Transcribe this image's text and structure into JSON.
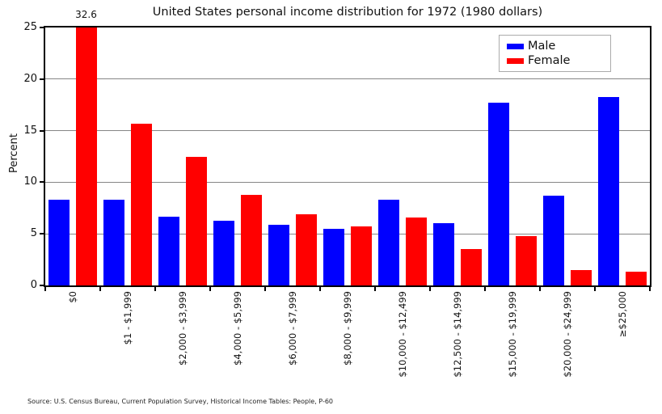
{
  "chart_data": {
    "type": "bar",
    "title": "United States personal income distribution for 1972 (1980 dollars)",
    "xlabel": "",
    "ylabel": "Percent",
    "categories": [
      "$0",
      "$1 - $1,999",
      "$2,000 - $3,999",
      "$4,000 - $5,999",
      "$6,000 - $7,999",
      "$8,000 - $9,999",
      "$10,000 - $12,499",
      "$12,500 - $14,999",
      "$15,000 - $19,999",
      "$20,000 - $24,999",
      "≥$25,000"
    ],
    "series": [
      {
        "name": "Male",
        "color": "#0000ff",
        "values": [
          8.3,
          8.3,
          6.7,
          6.3,
          5.9,
          5.5,
          8.3,
          6.0,
          17.7,
          8.7,
          18.3
        ]
      },
      {
        "name": "Female",
        "color": "#ff0000",
        "values": [
          32.6,
          15.7,
          12.5,
          8.8,
          6.9,
          5.7,
          6.6,
          3.5,
          4.8,
          1.5,
          1.3
        ]
      }
    ],
    "ylim": [
      0,
      25
    ],
    "yticks": [
      0,
      5,
      10,
      15,
      20,
      25
    ],
    "grid": true,
    "legend_position": "upper right",
    "clip_annotation": {
      "text": "32.6",
      "category_index": 0,
      "series": "Female"
    },
    "source": "Source: U.S. Census Bureau, Current Population Survey, Historical Income Tables: People, P-60"
  }
}
